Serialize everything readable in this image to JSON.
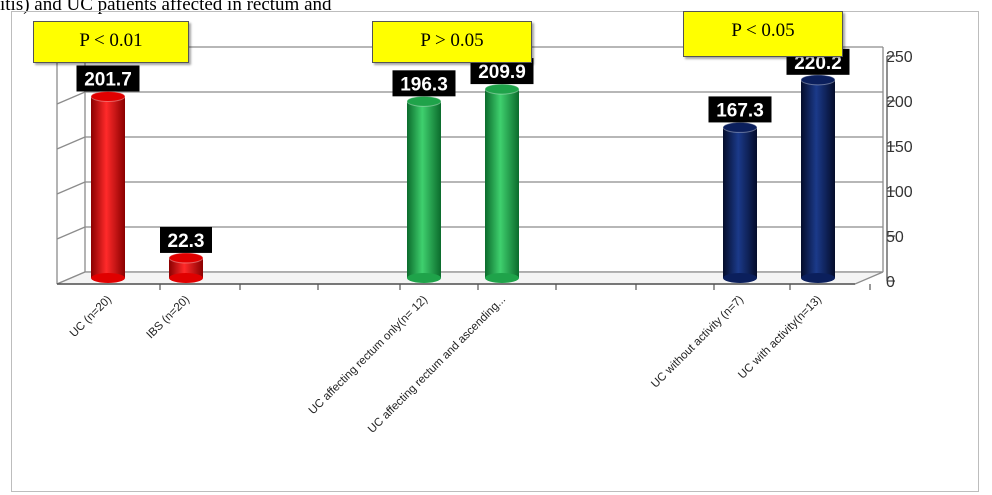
{
  "caption_text": "itis) and UC patients affected in rectum and",
  "chart_data": {
    "type": "bar",
    "categories": [
      "UC (n=20)",
      "IBS (n=20)",
      "UC affecting rectum only(n= 12)",
      "UC affecting rectum and ascending...",
      "UC without activity (n=7)",
      "UC with activity(n=13)"
    ],
    "values": [
      201.7,
      22.3,
      196.3,
      209.9,
      167.3,
      220.2
    ],
    "data_labels": [
      "201.7",
      "22.3",
      "196.3",
      "209.9",
      "167.3",
      "220.2"
    ],
    "bar_colors": [
      "#e00000",
      "#e00000",
      "#1fa34a",
      "#1fa34a",
      "#0b1f5c",
      "#0b1f5c"
    ],
    "ylim": [
      0,
      250
    ],
    "y_ticks": [
      "0",
      "50",
      "100",
      "150",
      "200",
      "250"
    ],
    "y_axis_side": "right",
    "grid": true,
    "annotations": [
      "P < 0.01",
      "P > 0.05",
      "P < 0.05"
    ]
  }
}
